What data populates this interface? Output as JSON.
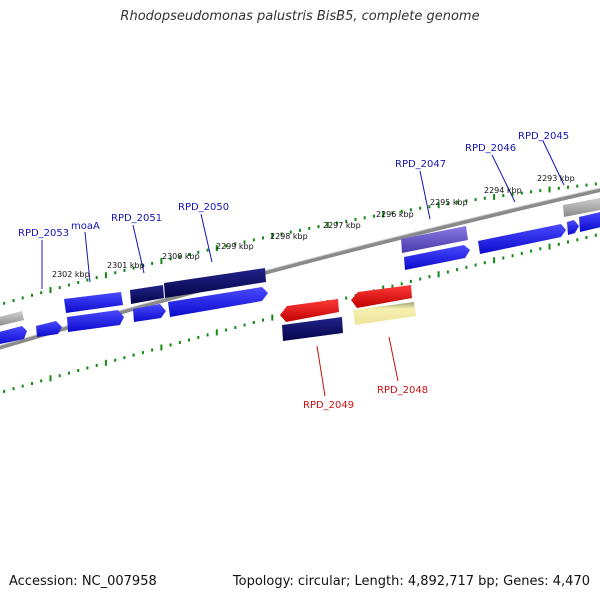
{
  "title": "Rhodopseudomonas palustris BisB5, complete genome",
  "footer": {
    "accession": "Accession: NC_007958",
    "summary": "Topology: circular; Length: 4,892,717 bp; Genes: 4,470"
  },
  "colors": {
    "forward": "#1a1aee",
    "forward_dark": "#0a0a6e",
    "reverse_red": "#ee1111",
    "label_blue": "#1414b4",
    "label_red": "#cc1111",
    "tick_green": "#118811",
    "backbone": "#888888",
    "gray_gene": "#b8b8b8",
    "purple_gene": "#6a5acd",
    "pale_gene": "#eee8a0"
  },
  "kbp_marks": [
    "2302 kbp",
    "2301 kbp",
    "2300 kbp",
    "2299 kbp",
    "2298 kbp",
    "2297 kbp",
    "2296 kbp",
    "2295 kbp",
    "2294 kbp",
    "2293 kbp"
  ],
  "gene_labels": [
    {
      "text": "RPD_2053",
      "strand": "forward"
    },
    {
      "text": "moaA",
      "strand": "forward"
    },
    {
      "text": "RPD_2051",
      "strand": "forward"
    },
    {
      "text": "RPD_2050",
      "strand": "forward"
    },
    {
      "text": "RPD_2047",
      "strand": "forward"
    },
    {
      "text": "RPD_2046",
      "strand": "forward"
    },
    {
      "text": "RPD_2045",
      "strand": "forward"
    },
    {
      "text": "RPD_2049",
      "strand": "reverse"
    },
    {
      "text": "RPD_2048",
      "strand": "reverse"
    }
  ]
}
